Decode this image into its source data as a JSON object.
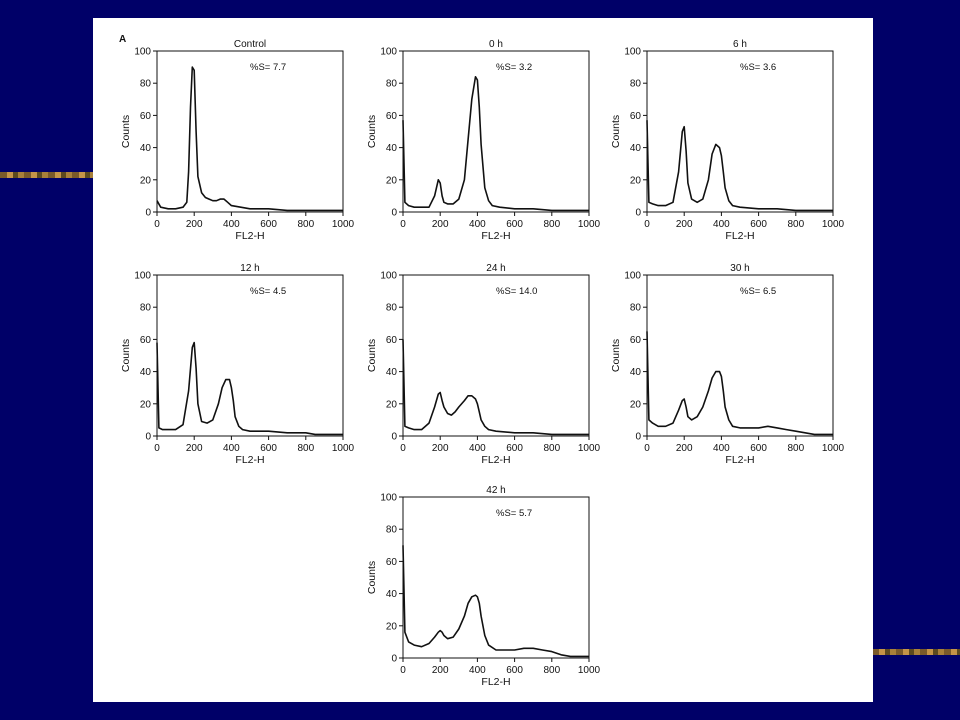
{
  "slide": {
    "background_color": "#000068",
    "accent_stripe_color": "#b48a45",
    "panel_label": "A"
  },
  "chart_data": [
    {
      "type": "line",
      "title": "Control",
      "annotation": "%S= 7.7",
      "xlabel": "FL2-H",
      "ylabel": "Counts",
      "xlim": [
        0,
        1000
      ],
      "ylim": [
        0,
        100
      ],
      "xticks": [
        "0",
        "200",
        "400",
        "600",
        "800",
        "1000"
      ],
      "yticks": [
        "0",
        "20",
        "40",
        "60",
        "80",
        "100"
      ],
      "x": [
        0,
        20,
        60,
        100,
        140,
        160,
        170,
        180,
        190,
        200,
        210,
        220,
        240,
        260,
        280,
        300,
        320,
        340,
        360,
        380,
        400,
        450,
        500,
        600,
        700,
        800,
        900,
        1000
      ],
      "y": [
        7,
        3,
        2,
        2,
        3,
        6,
        25,
        65,
        90,
        88,
        50,
        22,
        12,
        9,
        8,
        7,
        7,
        8,
        8,
        6,
        4,
        3,
        2,
        2,
        1,
        1,
        1,
        1
      ]
    },
    {
      "type": "line",
      "title": "0 h",
      "annotation": "%S= 3.2",
      "xlabel": "FL2-H",
      "ylabel": "Counts",
      "xlim": [
        0,
        1000
      ],
      "ylim": [
        0,
        100
      ],
      "xticks": [
        "0",
        "200",
        "400",
        "600",
        "800",
        "1000"
      ],
      "yticks": [
        "0",
        "20",
        "40",
        "60",
        "80",
        "100"
      ],
      "x": [
        0,
        10,
        30,
        60,
        100,
        140,
        170,
        190,
        200,
        210,
        220,
        240,
        270,
        300,
        330,
        350,
        370,
        390,
        400,
        410,
        420,
        440,
        460,
        480,
        520,
        600,
        700,
        800,
        900,
        1000
      ],
      "y": [
        57,
        6,
        4,
        3,
        3,
        3,
        10,
        20,
        18,
        10,
        6,
        5,
        5,
        8,
        20,
        45,
        70,
        84,
        82,
        65,
        42,
        15,
        7,
        4,
        3,
        2,
        2,
        1,
        1,
        1
      ]
    },
    {
      "type": "line",
      "title": "6 h",
      "annotation": "%S= 3.6",
      "xlabel": "FL2-H",
      "ylabel": "Counts",
      "xlim": [
        0,
        1000
      ],
      "ylim": [
        0,
        100
      ],
      "xticks": [
        "0",
        "200",
        "400",
        "600",
        "800",
        "1000"
      ],
      "yticks": [
        "0",
        "20",
        "40",
        "60",
        "80",
        "100"
      ],
      "x": [
        0,
        10,
        30,
        60,
        100,
        140,
        170,
        190,
        200,
        210,
        220,
        240,
        270,
        300,
        330,
        350,
        370,
        390,
        400,
        410,
        420,
        440,
        460,
        500,
        600,
        700,
        800,
        900,
        1000
      ],
      "y": [
        57,
        6,
        5,
        4,
        4,
        6,
        25,
        50,
        53,
        38,
        18,
        8,
        6,
        8,
        20,
        36,
        42,
        40,
        35,
        25,
        15,
        7,
        4,
        3,
        2,
        2,
        1,
        1,
        1
      ]
    },
    {
      "type": "line",
      "title": "12 h",
      "annotation": "%S= 4.5",
      "xlabel": "FL2-H",
      "ylabel": "Counts",
      "xlim": [
        0,
        1000
      ],
      "ylim": [
        0,
        100
      ],
      "xticks": [
        "0",
        "200",
        "400",
        "600",
        "800",
        "1000"
      ],
      "yticks": [
        "0",
        "20",
        "40",
        "60",
        "80",
        "100"
      ],
      "x": [
        0,
        10,
        30,
        60,
        100,
        140,
        170,
        190,
        200,
        210,
        220,
        240,
        270,
        300,
        330,
        350,
        370,
        390,
        400,
        410,
        420,
        440,
        460,
        500,
        600,
        700,
        800,
        850,
        900,
        1000
      ],
      "y": [
        58,
        5,
        4,
        4,
        4,
        7,
        28,
        55,
        58,
        42,
        20,
        9,
        8,
        10,
        20,
        30,
        35,
        35,
        30,
        22,
        12,
        6,
        4,
        3,
        3,
        2,
        2,
        1,
        1,
        1
      ]
    },
    {
      "type": "line",
      "title": "24 h",
      "annotation": "%S= 14.0",
      "xlabel": "FL2-H",
      "ylabel": "Counts",
      "xlim": [
        0,
        1000
      ],
      "ylim": [
        0,
        100
      ],
      "xticks": [
        "0",
        "200",
        "400",
        "600",
        "800",
        "1000"
      ],
      "yticks": [
        "0",
        "20",
        "40",
        "60",
        "80",
        "100"
      ],
      "x": [
        0,
        10,
        30,
        60,
        100,
        140,
        170,
        190,
        200,
        210,
        220,
        240,
        260,
        280,
        300,
        330,
        350,
        370,
        390,
        400,
        410,
        420,
        440,
        460,
        500,
        600,
        700,
        800,
        900,
        1000
      ],
      "y": [
        60,
        6,
        5,
        4,
        4,
        8,
        18,
        26,
        27,
        22,
        18,
        14,
        13,
        15,
        18,
        22,
        25,
        25,
        23,
        20,
        15,
        10,
        6,
        4,
        3,
        2,
        2,
        1,
        1,
        1
      ]
    },
    {
      "type": "line",
      "title": "30 h",
      "annotation": "%S= 6.5",
      "xlabel": "FL2-H",
      "ylabel": "Counts",
      "xlim": [
        0,
        1000
      ],
      "ylim": [
        0,
        100
      ],
      "xticks": [
        "0",
        "200",
        "400",
        "600",
        "800",
        "1000"
      ],
      "yticks": [
        "0",
        "20",
        "40",
        "60",
        "80",
        "100"
      ],
      "x": [
        0,
        10,
        30,
        60,
        100,
        140,
        170,
        190,
        200,
        210,
        220,
        240,
        270,
        300,
        330,
        350,
        370,
        390,
        400,
        410,
        420,
        440,
        460,
        500,
        550,
        600,
        650,
        700,
        750,
        800,
        900,
        1000
      ],
      "y": [
        65,
        10,
        8,
        6,
        6,
        8,
        16,
        22,
        23,
        18,
        12,
        10,
        12,
        18,
        28,
        36,
        40,
        40,
        37,
        28,
        18,
        10,
        6,
        5,
        5,
        5,
        6,
        5,
        4,
        3,
        1,
        1
      ]
    },
    {
      "type": "line",
      "title": "42 h",
      "annotation": "%S= 5.7",
      "xlabel": "FL2-H",
      "ylabel": "Counts",
      "xlim": [
        0,
        1000
      ],
      "ylim": [
        0,
        100
      ],
      "xticks": [
        "0",
        "200",
        "400",
        "600",
        "800",
        "1000"
      ],
      "yticks": [
        "0",
        "20",
        "40",
        "60",
        "80",
        "100"
      ],
      "x": [
        0,
        10,
        30,
        60,
        100,
        140,
        170,
        190,
        200,
        210,
        220,
        240,
        270,
        300,
        330,
        350,
        370,
        390,
        400,
        410,
        420,
        440,
        460,
        500,
        550,
        600,
        650,
        700,
        750,
        800,
        850,
        900,
        1000
      ],
      "y": [
        70,
        16,
        10,
        8,
        7,
        9,
        13,
        16,
        17,
        16,
        14,
        12,
        13,
        18,
        26,
        34,
        38,
        39,
        38,
        34,
        26,
        14,
        8,
        5,
        5,
        5,
        6,
        6,
        5,
        4,
        2,
        1,
        1
      ]
    }
  ]
}
